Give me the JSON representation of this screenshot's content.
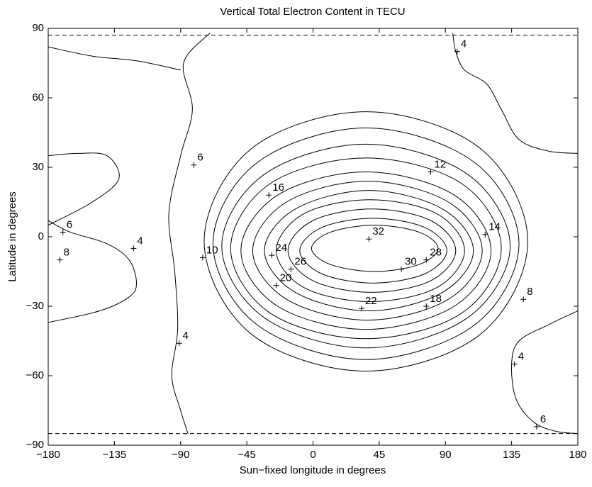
{
  "chart_data": {
    "type": "contour",
    "title": "Vertical Total Electron Content in TECU",
    "xlabel": "Sun−fixed longitude in degrees",
    "ylabel": "Latitude in degrees",
    "xlim": [
      -180,
      180
    ],
    "ylim": [
      -90,
      90
    ],
    "xticks": [
      {
        "value": -180,
        "label": "−180"
      },
      {
        "value": -135,
        "label": "−135"
      },
      {
        "value": -90,
        "label": "−90"
      },
      {
        "value": -45,
        "label": "−45"
      },
      0,
      45,
      90,
      135,
      180
    ],
    "yticks": [
      {
        "value": -90,
        "label": "−90"
      },
      {
        "value": -60,
        "label": "−60"
      },
      {
        "value": -30,
        "label": "−30"
      },
      0,
      30,
      60,
      90
    ],
    "color": "#000000",
    "hlines": [
      87,
      -85
    ],
    "contours": [
      {
        "x": [
          85,
          72,
          42,
          12,
          -1,
          12,
          42,
          72,
          85
        ],
        "y": [
          -5,
          2,
          5,
          2,
          -5,
          -12,
          -15,
          -12,
          -5
        ]
      },
      {
        "x": [
          91,
          76,
          41,
          6,
          -9,
          6,
          41,
          76,
          91
        ],
        "y": [
          -6,
          4,
          8,
          4,
          -6,
          -16,
          -20,
          -16,
          -6
        ]
      },
      {
        "x": [
          97,
          80,
          40,
          0,
          -17,
          0,
          40,
          80,
          97
        ],
        "y": [
          -6,
          7,
          12,
          7,
          -6,
          -19,
          -24,
          -19,
          -6
        ]
      },
      {
        "x": [
          103,
          84,
          39,
          -6,
          -25,
          -6,
          39,
          84,
          103
        ],
        "y": [
          -6,
          10,
          16,
          10,
          -6,
          -22,
          -28,
          -22,
          -6
        ]
      },
      {
        "x": [
          109,
          88,
          38,
          -12,
          -33,
          -12,
          38,
          88,
          109
        ],
        "y": [
          -6,
          12,
          20,
          12,
          -6,
          -24,
          -32,
          -24,
          -6
        ]
      },
      {
        "x": [
          115,
          92,
          37,
          -18,
          -41,
          -18,
          37,
          92,
          115
        ],
        "y": [
          -6,
          15,
          24,
          15,
          -6,
          -27,
          -36,
          -27,
          -6
        ]
      },
      {
        "x": [
          121,
          96,
          36,
          -24,
          -49,
          -24,
          36,
          96,
          121
        ],
        "y": [
          -6,
          18,
          28,
          18,
          -6,
          -30,
          -40,
          -30,
          -6
        ]
      },
      {
        "x": [
          128,
          101,
          36,
          -29,
          -56,
          -29,
          36,
          101,
          128
        ],
        "y": [
          -5,
          23,
          34,
          23,
          -5,
          -33,
          -44,
          -33,
          -5
        ]
      },
      {
        "x": [
          134,
          105,
          36,
          -33,
          -62,
          -33,
          36,
          105,
          134
        ],
        "y": [
          -4,
          27,
          40,
          27,
          -4,
          -35,
          -48,
          -35,
          -4
        ]
      },
      {
        "x": [
          140,
          110,
          36,
          -38,
          -68,
          -38,
          36,
          110,
          140
        ],
        "y": [
          -3,
          32,
          47,
          32,
          -3,
          -38,
          -53,
          -38,
          -3
        ]
      },
      {
        "x": [
          146,
          114,
          36,
          -42,
          -74,
          -42,
          36,
          114,
          146
        ],
        "y": [
          -2,
          38,
          54,
          38,
          -2,
          -42,
          -58,
          -42,
          -2
        ]
      },
      {
        "x": [
          95,
          97,
          103,
          118,
          128,
          140,
          160,
          180
        ],
        "y": [
          88,
          80,
          72,
          66,
          55,
          42,
          37,
          36
        ]
      },
      {
        "x": [
          -70,
          -88,
          -82,
          -90,
          -98,
          -94,
          -92,
          -96,
          -90,
          -85
        ],
        "y": [
          88,
          75,
          55,
          35,
          10,
          -15,
          -40,
          -60,
          -75,
          -85
        ]
      },
      {
        "x": [
          -180,
          -165,
          -140,
          -125,
          -120,
          -125,
          -145,
          -180
        ],
        "y": [
          7,
          2,
          -3,
          -10,
          -20,
          -26,
          -32,
          -37
        ]
      },
      {
        "x": [
          -180,
          -160,
          -140,
          -132,
          -150,
          -180
        ],
        "y": [
          35,
          36,
          35,
          25,
          15,
          5
        ]
      },
      {
        "x": [
          180,
          160,
          140,
          135,
          138,
          150,
          165,
          180
        ],
        "y": [
          -32,
          -38,
          -45,
          -55,
          -70,
          -80,
          -84,
          -85
        ]
      },
      {
        "x": [
          -180,
          -150,
          -120,
          -90
        ],
        "y": [
          82,
          78,
          76,
          72
        ]
      }
    ],
    "labels": [
      {
        "value": 4,
        "x": 98,
        "y": 80
      },
      {
        "value": 6,
        "x": -81,
        "y": 31
      },
      {
        "value": 12,
        "x": 80,
        "y": 28
      },
      {
        "value": 16,
        "x": -30,
        "y": 18
      },
      {
        "value": 6,
        "x": -170,
        "y": 2
      },
      {
        "value": 4,
        "x": -122,
        "y": -5
      },
      {
        "value": 32,
        "x": 38,
        "y": -1
      },
      {
        "value": 14,
        "x": 117,
        "y": 1
      },
      {
        "value": 8,
        "x": -172,
        "y": -10
      },
      {
        "value": 10,
        "x": -75,
        "y": -9
      },
      {
        "value": 24,
        "x": -28,
        "y": -8
      },
      {
        "value": 26,
        "x": -15,
        "y": -14
      },
      {
        "value": 30,
        "x": 60,
        "y": -14
      },
      {
        "value": 28,
        "x": 77,
        "y": -10
      },
      {
        "value": 20,
        "x": -25,
        "y": -21
      },
      {
        "value": 22,
        "x": 33,
        "y": -31
      },
      {
        "value": 18,
        "x": 77,
        "y": -30
      },
      {
        "value": 8,
        "x": 143,
        "y": -27
      },
      {
        "value": 4,
        "x": -91,
        "y": -46
      },
      {
        "value": 4,
        "x": 137,
        "y": -55
      },
      {
        "value": 6,
        "x": 152,
        "y": -82
      }
    ]
  }
}
